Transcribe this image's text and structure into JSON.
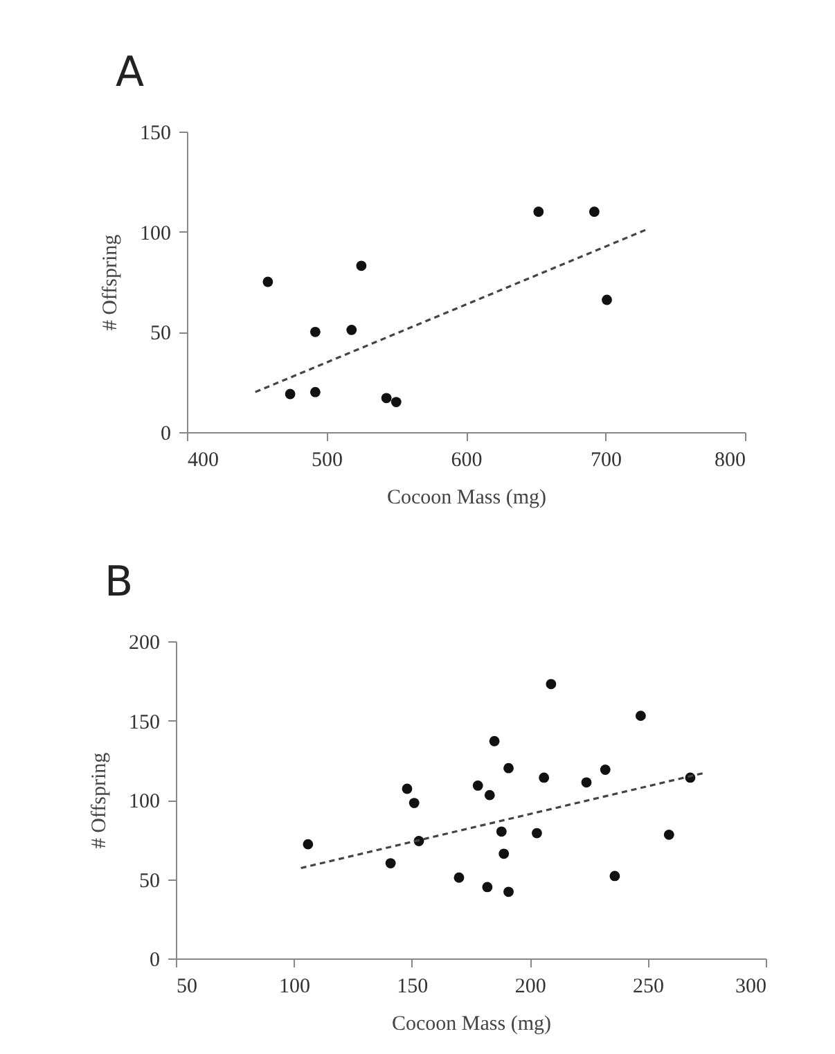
{
  "chart_data": [
    {
      "type": "scatter",
      "title": "A",
      "xlabel": "Cocoon Mass (mg)",
      "ylabel": "# Offspring",
      "xlim": [
        400,
        800
      ],
      "xticks": [
        400,
        500,
        600,
        700,
        800
      ],
      "ylim": [
        0,
        150
      ],
      "yticks": [
        0,
        50,
        100,
        150
      ],
      "series": [
        {
          "marker": "circle",
          "color": "#111111",
          "x": [
            458,
            474,
            492,
            492,
            518,
            525,
            543,
            550,
            652,
            692,
            701
          ],
          "values": [
            75,
            19,
            50,
            20,
            51,
            83,
            17,
            15,
            110,
            110,
            66
          ]
        },
        {
          "type": "line",
          "color": "#444444",
          "line_style": "dashed",
          "x": [
            449,
            729
          ],
          "values": [
            20,
            101
          ]
        }
      ]
    },
    {
      "type": "scatter",
      "title": "B",
      "xlabel": "Cocoon Mass (mg)",
      "ylabel": "# Offspring",
      "xlim": [
        50,
        300
      ],
      "xticks": [
        50,
        100,
        150,
        200,
        250,
        300
      ],
      "ylim": [
        0,
        200
      ],
      "yticks": [
        0,
        50,
        100,
        150,
        200
      ],
      "series": [
        {
          "marker": "circle",
          "color": "#111111",
          "x": [
            106,
            141,
            148,
            151,
            153,
            170,
            178,
            182,
            183,
            185,
            188,
            189,
            191,
            191,
            203,
            206,
            209,
            224,
            232,
            236,
            247,
            259,
            268
          ],
          "values": [
            72,
            60,
            107,
            98,
            74,
            51,
            109,
            45,
            103,
            137,
            80,
            66,
            120,
            42,
            79,
            114,
            173,
            111,
            119,
            52,
            153,
            78,
            114
          ]
        },
        {
          "type": "line",
          "color": "#444444",
          "line_style": "dashed",
          "x": [
            103,
            274
          ],
          "values": [
            57,
            117
          ]
        }
      ]
    }
  ]
}
